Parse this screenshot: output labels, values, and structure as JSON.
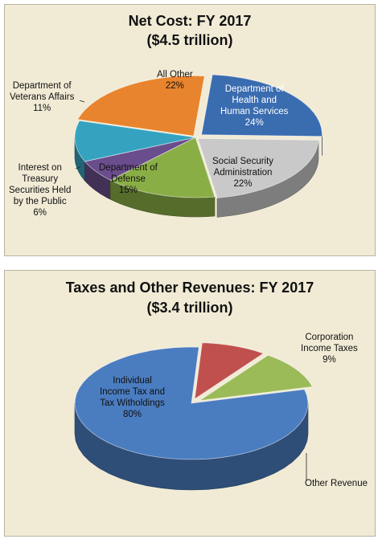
{
  "chart_data": [
    {
      "type": "pie",
      "title": "Net Cost: FY 2017",
      "subtitle": "($4.5 trillion)",
      "slices": [
        {
          "label": "Department of Health and Human Services",
          "lines": [
            "Department of",
            "Health and",
            "Human Services"
          ],
          "value": 24,
          "pct": "24%",
          "color": "#3a6cb0"
        },
        {
          "label": "Social Security Administration",
          "lines": [
            "Social Security",
            "Administration"
          ],
          "value": 22,
          "pct": "22%",
          "color": "#c9c9c9"
        },
        {
          "label": "Department of Defense",
          "lines": [
            "Department of",
            "Defense"
          ],
          "value": 15,
          "pct": "15%",
          "color": "#8aae46"
        },
        {
          "label": "Interest on Treasury Securities Held by the Public",
          "lines": [
            "Interest on",
            "Treasury",
            "Securities Held",
            "by the Public"
          ],
          "value": 6,
          "pct": "6%",
          "color": "#6a4d8c"
        },
        {
          "label": "Department of Veterans Affairs",
          "lines": [
            "Department of",
            "Veterans Affairs"
          ],
          "value": 11,
          "pct": "11%",
          "color": "#35a3c0"
        },
        {
          "label": "All Other",
          "lines": [
            "All Other"
          ],
          "value": 22,
          "pct": "22%",
          "color": "#e8842d"
        }
      ]
    },
    {
      "type": "pie",
      "title": "Taxes and Other Revenues: FY 2017",
      "subtitle": "($3.4 trillion)",
      "slices": [
        {
          "label": "Individual Income Tax and Tax Witholdings",
          "lines": [
            "Individual",
            "Income Tax and",
            "Tax Witholdings"
          ],
          "value": 80,
          "pct": "80%",
          "color": "#4a7cc0"
        },
        {
          "label": "Corporation Income Taxes",
          "lines": [
            "Corporation",
            "Income Taxes"
          ],
          "value": 9,
          "pct": "9%",
          "color": "#c0504d"
        },
        {
          "label": "Other Revenue",
          "lines": [
            "Other Revenue"
          ],
          "value": 11,
          "pct": "",
          "color": "#9bbb59"
        }
      ]
    }
  ]
}
